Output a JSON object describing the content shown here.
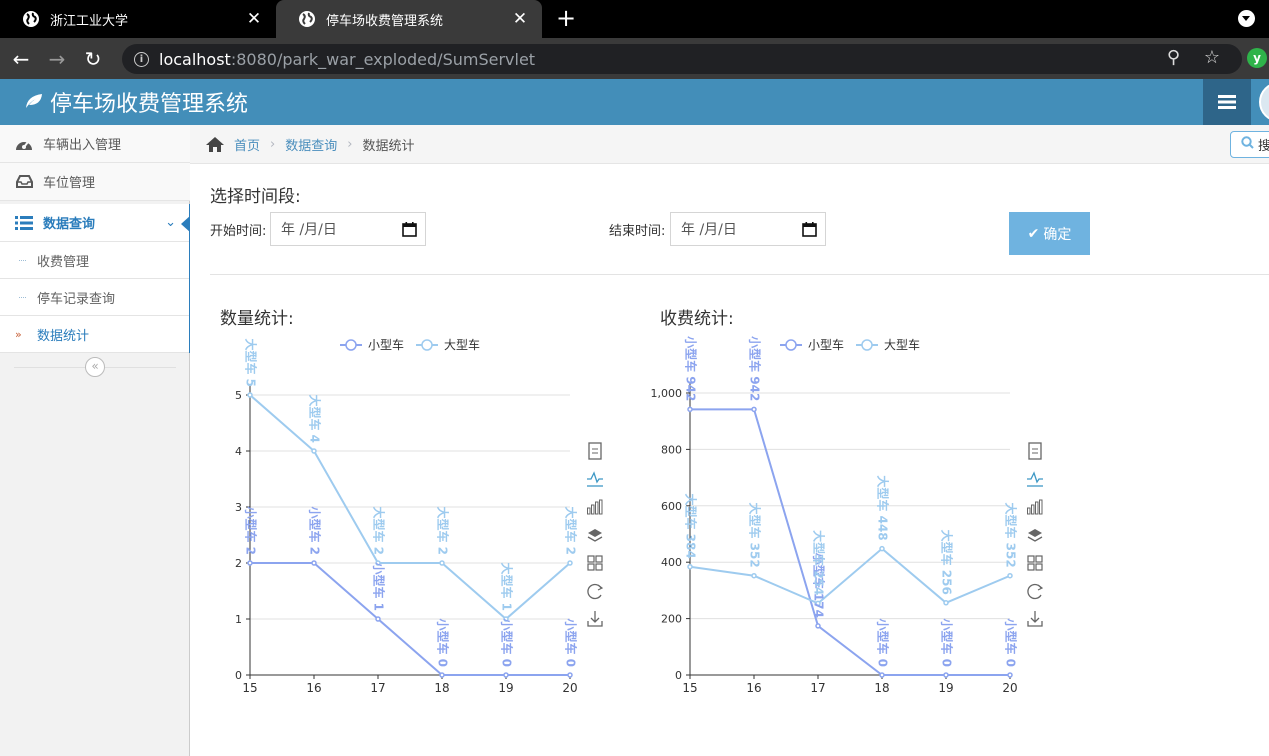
{
  "browser": {
    "tabs": [
      {
        "title": "浙江工业大学",
        "active": false
      },
      {
        "title": "停车场收费管理系统",
        "active": true
      }
    ],
    "url_host": "localhost",
    "url_rest": ":8080/park_war_exploded/SumServlet",
    "extension_label": "y"
  },
  "header": {
    "brand": "停车场收费管理系统"
  },
  "sidebar": {
    "items": [
      {
        "label": "车辆出入管理",
        "icon": "dashboard-icon"
      },
      {
        "label": "车位管理",
        "icon": "inbox-icon"
      },
      {
        "label": "数据查询",
        "icon": "list-icon",
        "open": true
      }
    ],
    "subitems": [
      {
        "label": "收费管理",
        "active": false
      },
      {
        "label": "停车记录查询",
        "active": false
      },
      {
        "label": "数据统计",
        "active": true
      }
    ],
    "collapse_label": "«"
  },
  "breadcrumbs": {
    "home": "首页",
    "section": "数据查询",
    "current": "数据统计"
  },
  "search": {
    "placeholder": "搜"
  },
  "filter": {
    "title": "选择时间段:",
    "start_label": "开始时间:",
    "end_label": "结束时间:",
    "date_placeholder": "年 /月/日",
    "confirm_label": "确定"
  },
  "toolbox": [
    "data-view-icon",
    "line-type-icon",
    "bar-type-icon",
    "stack-icon",
    "tiled-icon",
    "restore-icon",
    "save-image-icon"
  ],
  "chart_data": [
    {
      "type": "line",
      "title": "数量统计:",
      "x": [
        "15",
        "16",
        "17",
        "18",
        "19",
        "20"
      ],
      "ylim": [
        0,
        5
      ],
      "yticks": [
        "0",
        "1",
        "2",
        "3",
        "4",
        "5"
      ],
      "legend_position": "top-center",
      "grid": true,
      "series": [
        {
          "name": "小型车",
          "values": [
            2,
            2,
            1,
            0,
            0,
            0
          ],
          "labels": [
            "2",
            "2",
            "1",
            "0",
            "0",
            "0"
          ],
          "color": "#8ca4ef"
        },
        {
          "name": "大型车",
          "values": [
            5,
            4,
            2,
            2,
            1,
            2
          ],
          "labels": [
            "5",
            "4",
            "2",
            "2",
            "1",
            "2"
          ],
          "color": "#9ecbef"
        }
      ]
    },
    {
      "type": "line",
      "title": "收费统计:",
      "x": [
        "15",
        "16",
        "17",
        "18",
        "19",
        "20"
      ],
      "ylim": [
        0,
        1000
      ],
      "yticks": [
        "0",
        "200",
        "400",
        "600",
        "800",
        "1,000"
      ],
      "legend_position": "top-center",
      "grid": true,
      "series": [
        {
          "name": "小型车",
          "values": [
            942,
            942,
            174,
            0,
            0,
            0
          ],
          "labels": [
            "942",
            "942",
            "174",
            "0",
            "0",
            "0"
          ],
          "color": "#8ca4ef"
        },
        {
          "name": "大型车",
          "values": [
            384,
            352,
            254,
            448,
            256,
            352
          ],
          "labels": [
            "384",
            "352",
            "254",
            "448",
            "256",
            "352"
          ],
          "color": "#9ecbef"
        }
      ]
    }
  ]
}
